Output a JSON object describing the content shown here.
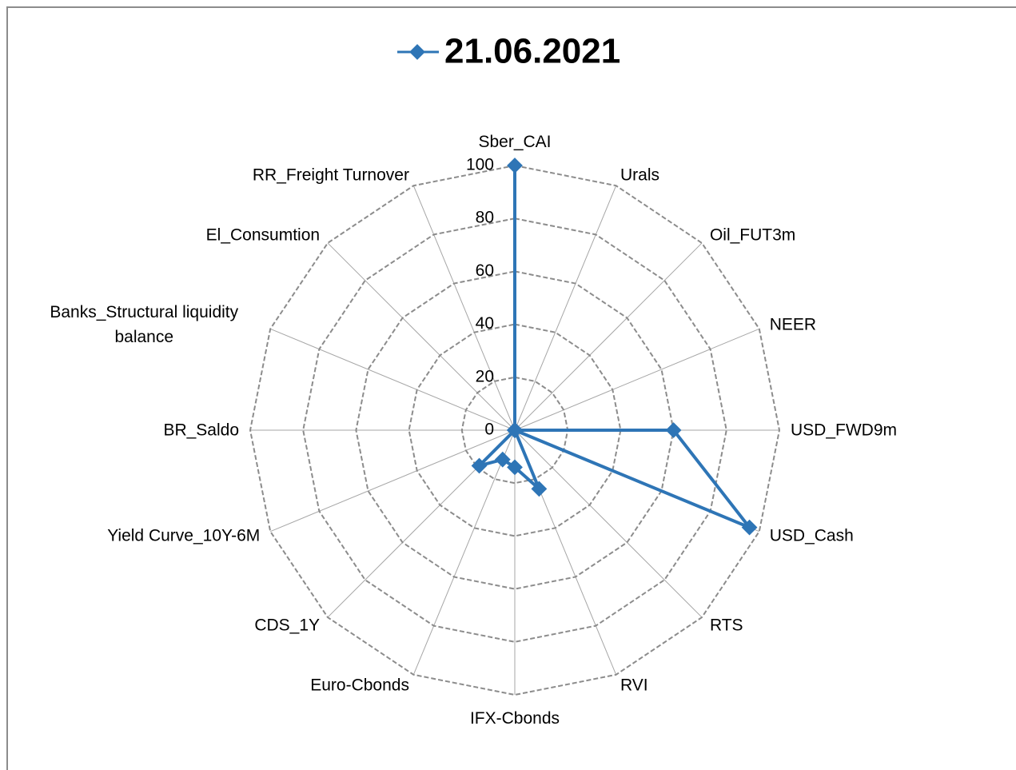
{
  "chart_data": {
    "type": "radar",
    "categories": [
      "Sber_CAI",
      "Urals",
      "Oil_FUT3m",
      "NEER",
      "USD_FWD9m",
      "USD_Cash",
      "RTS",
      "RVI",
      "IFX-Cbonds",
      "Euro-Cbonds",
      "CDS_1Y",
      "Yield Curve_10Y-6M",
      "BR_Saldo",
      "Banks_Structural liquidity balance",
      "El_Consumtion",
      "RR_Freight Turnover"
    ],
    "series": [
      {
        "name": "21.06.2021",
        "color": "#2e75b6",
        "values": [
          100,
          0,
          0,
          0,
          60,
          96,
          0,
          24,
          14,
          12,
          19,
          0,
          0,
          0,
          0,
          0
        ]
      }
    ],
    "ylim": [
      0,
      100
    ],
    "yticks": [
      0,
      20,
      40,
      60,
      80,
      100
    ],
    "grid": true
  }
}
